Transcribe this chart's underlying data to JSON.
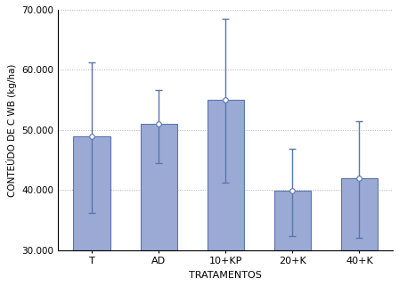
{
  "categories": [
    "T",
    "AD",
    "10+KP",
    "20+K",
    "40+K"
  ],
  "values": [
    49000,
    51000,
    55000,
    39900,
    42000
  ],
  "error_upper": [
    12200,
    5600,
    13500,
    7000,
    9500
  ],
  "error_lower": [
    12800,
    6500,
    13700,
    7600,
    10000
  ],
  "bar_color": "#9aaad4",
  "bar_edge_color": "#5a75b0",
  "marker_color": "white",
  "marker_edge_color": "#5a75b0",
  "ylabel": "CONTEÚDO DE C WB (kg/ha)",
  "xlabel": "TRATAMENTOS",
  "ylim": [
    30000,
    70000
  ],
  "ybase": 30000,
  "yticks": [
    30000,
    40000,
    50000,
    60000,
    70000
  ],
  "ytick_labels": [
    "30.000",
    "40.000",
    "50.000",
    "60.000",
    "70.000"
  ],
  "grid_color": "#b0b0b0",
  "background_color": "#ffffff"
}
